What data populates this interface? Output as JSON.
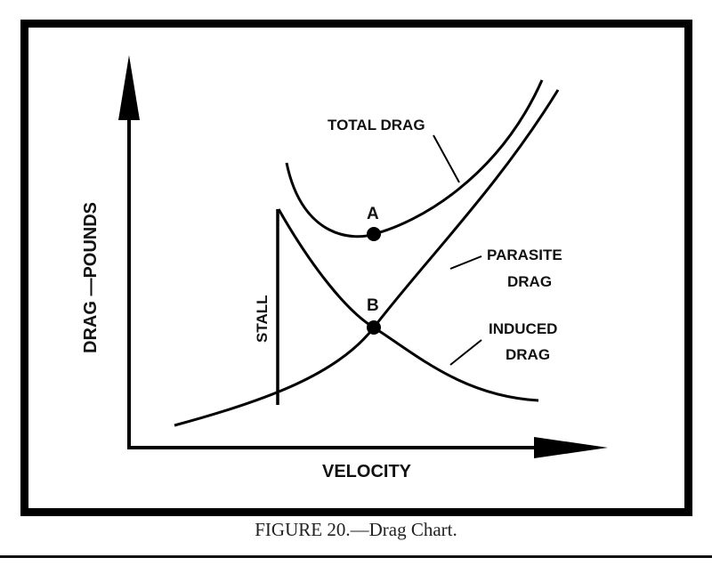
{
  "figure": {
    "caption": "FIGURE 20.—Drag Chart."
  },
  "chart_data": {
    "type": "line",
    "title": "",
    "xlabel": "VELOCITY",
    "ylabel": "DRAG —POUNDS",
    "series": [
      {
        "name": "TOTAL DRAG"
      },
      {
        "name": "PARASITE DRAG"
      },
      {
        "name": "INDUCED DRAG"
      }
    ],
    "annotations": {
      "total_drag": "TOTAL DRAG",
      "parasite_drag_line1": "PARASITE",
      "parasite_drag_line2": "DRAG",
      "induced_drag_line1": "INDUCED",
      "induced_drag_line2": "DRAG",
      "stall": "STALL",
      "point_a": "A",
      "point_b": "B"
    }
  }
}
